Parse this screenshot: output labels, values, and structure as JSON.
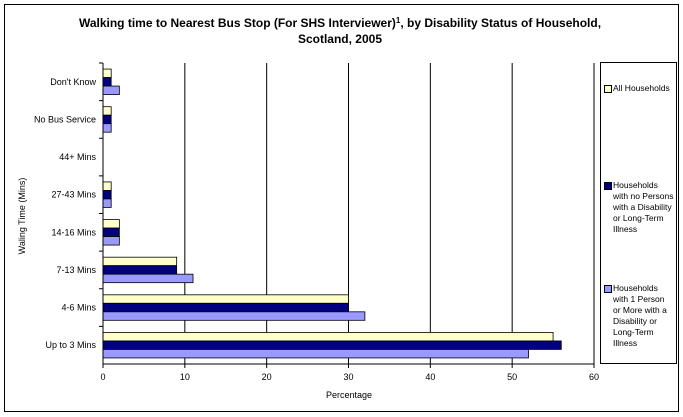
{
  "chart_data": {
    "type": "bar",
    "orientation": "horizontal",
    "title_line1": "Walking time to Nearest Bus Stop (For SHS Interviewer)",
    "title_sup": "1",
    "title_line1_end": ", by Disability Status of Household,",
    "title_line2": "Scotland, 2005",
    "xlabel": "Percentage",
    "ylabel": "Waling Time (Mins)",
    "xlim": [
      0,
      60
    ],
    "xticks": [
      "0",
      "10",
      "20",
      "30",
      "40",
      "50",
      "60"
    ],
    "grid": "vertical",
    "legend_position": "right",
    "categories": [
      "Don't Know",
      "No Bus Service",
      "44+ Mins",
      "27-43 Mins",
      "14-16 Mins",
      "7-13 Mins",
      "4-6 Mins",
      "Up to 3 Mins"
    ],
    "series": [
      {
        "name": "All Households",
        "color": "#ffffcc",
        "values": [
          1,
          1,
          0,
          1,
          2,
          9,
          30,
          55
        ]
      },
      {
        "name": "Households with no Persons with a Disability or Long-Term Illness",
        "color": "#000080",
        "values": [
          1,
          1,
          0,
          1,
          2,
          9,
          30,
          56
        ]
      },
      {
        "name": "Households with 1 Person or More with a Disability or Long-Term Illness",
        "color": "#9999ff",
        "values": [
          2,
          1,
          0,
          1,
          2,
          11,
          32,
          52
        ]
      }
    ]
  },
  "legend": {
    "items": [
      {
        "label": "All Households"
      },
      {
        "label": "Households with no Persons with a Disability or Long-Term Illness"
      },
      {
        "label": "Households with 1 Person or More with a Disability or Long-Term Illness"
      }
    ]
  }
}
